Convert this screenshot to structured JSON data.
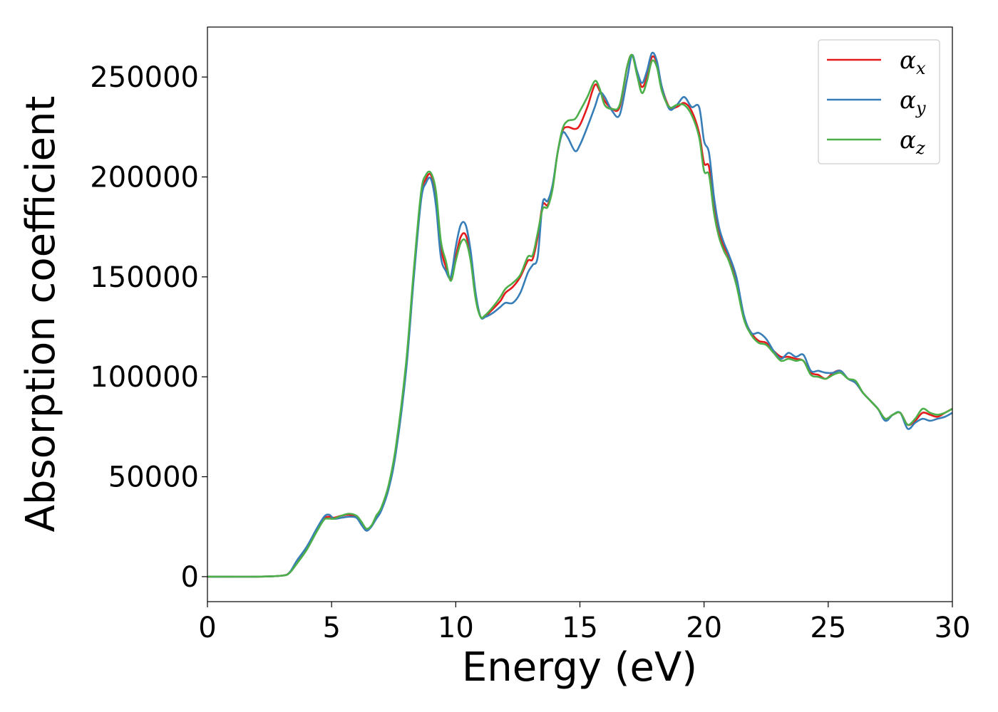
{
  "chart_data": {
    "type": "line",
    "title": "",
    "xlabel": "Energy (eV)",
    "ylabel": "Absorption coefficient",
    "xlim": [
      0,
      30
    ],
    "ylim": [
      -12500,
      275000
    ],
    "xticks": [
      0,
      5,
      10,
      15,
      20,
      25,
      30
    ],
    "yticks": [
      0,
      50000,
      100000,
      150000,
      200000,
      250000
    ],
    "grid": false,
    "legend_position": "top-right",
    "series": [
      {
        "name": "α",
        "subscript": "x",
        "color": "#e41a1c",
        "x": [
          0,
          2,
          3,
          3.3,
          3.6,
          4.0,
          4.4,
          4.7,
          4.9,
          5.1,
          5.4,
          5.7,
          6.0,
          6.2,
          6.4,
          6.6,
          6.8,
          7.0,
          7.3,
          7.6,
          8.0,
          8.3,
          8.6,
          8.8,
          9.0,
          9.2,
          9.4,
          9.6,
          9.8,
          10.0,
          10.2,
          10.4,
          10.6,
          10.8,
          11.0,
          11.2,
          11.5,
          11.8,
          12.0,
          12.3,
          12.6,
          12.9,
          13.1,
          13.3,
          13.5,
          13.7,
          13.9,
          14.1,
          14.3,
          14.5,
          14.8,
          15.0,
          15.3,
          15.6,
          15.8,
          16.0,
          16.3,
          16.6,
          16.9,
          17.1,
          17.3,
          17.5,
          17.7,
          17.9,
          18.1,
          18.3,
          18.6,
          18.9,
          19.2,
          19.5,
          19.8,
          20.0,
          20.2,
          20.4,
          20.6,
          20.8,
          21.0,
          21.3,
          21.6,
          21.9,
          22.2,
          22.5,
          22.8,
          23.1,
          23.4,
          23.7,
          24.0,
          24.3,
          24.6,
          24.9,
          25.2,
          25.5,
          25.8,
          26.1,
          26.4,
          26.7,
          27.0,
          27.3,
          27.6,
          27.9,
          28.2,
          28.5,
          28.8,
          29.1,
          29.4,
          29.7,
          30.0
        ],
        "y": [
          0,
          0,
          500,
          2000,
          7000,
          14000,
          23000,
          29000,
          30000,
          29500,
          30500,
          31000,
          30000,
          27000,
          23500,
          25000,
          30000,
          34000,
          45000,
          65000,
          105000,
          150000,
          190000,
          199000,
          201000,
          190000,
          165000,
          155000,
          149000,
          160000,
          170000,
          171000,
          160000,
          140000,
          130000,
          130500,
          134000,
          138000,
          142000,
          145000,
          150000,
          158000,
          159000,
          170000,
          186000,
          186000,
          195000,
          212000,
          223000,
          225000,
          224000,
          226000,
          235000,
          246000,
          243000,
          238000,
          234000,
          235000,
          255000,
          261000,
          252000,
          245000,
          250000,
          260000,
          257000,
          245000,
          235000,
          235000,
          237000,
          233000,
          222000,
          207000,
          205000,
          185000,
          172000,
          165000,
          160000,
          148000,
          130000,
          122000,
          118000,
          117000,
          113000,
          110000,
          110000,
          109000,
          108000,
          102000,
          101000,
          99000,
          102000,
          103000,
          99000,
          97000,
          92000,
          88000,
          84000,
          79000,
          81000,
          82000,
          76000,
          78000,
          82000,
          81000,
          80000,
          82000,
          84000
        ]
      },
      {
        "name": "α",
        "subscript": "y",
        "color": "#377eb8",
        "x": [
          0,
          2,
          3,
          3.3,
          3.6,
          4.0,
          4.4,
          4.7,
          4.9,
          5.1,
          5.4,
          5.7,
          6.0,
          6.2,
          6.4,
          6.6,
          6.8,
          7.0,
          7.3,
          7.6,
          8.0,
          8.3,
          8.6,
          8.8,
          9.0,
          9.2,
          9.4,
          9.6,
          9.8,
          10.0,
          10.2,
          10.4,
          10.6,
          10.8,
          11.0,
          11.2,
          11.5,
          11.8,
          12.0,
          12.3,
          12.6,
          12.9,
          13.1,
          13.3,
          13.5,
          13.7,
          13.9,
          14.1,
          14.3,
          14.5,
          14.8,
          15.0,
          15.3,
          15.6,
          15.8,
          16.0,
          16.3,
          16.6,
          16.9,
          17.1,
          17.3,
          17.5,
          17.7,
          17.9,
          18.1,
          18.3,
          18.6,
          18.9,
          19.2,
          19.5,
          19.8,
          20.0,
          20.2,
          20.4,
          20.6,
          20.8,
          21.0,
          21.3,
          21.6,
          21.9,
          22.2,
          22.5,
          22.8,
          23.1,
          23.4,
          23.7,
          24.0,
          24.3,
          24.6,
          24.9,
          25.2,
          25.5,
          25.8,
          26.1,
          26.4,
          26.7,
          27.0,
          27.3,
          27.6,
          27.9,
          28.2,
          28.5,
          28.8,
          29.1,
          29.4,
          29.7,
          30.0
        ],
        "y": [
          0,
          0,
          500,
          2000,
          8000,
          15000,
          24000,
          30000,
          31000,
          29000,
          29500,
          30000,
          29500,
          26000,
          23000,
          25000,
          29000,
          33000,
          44000,
          63000,
          103000,
          148000,
          188000,
          197000,
          199000,
          186000,
          160000,
          153000,
          150000,
          165000,
          176000,
          176000,
          163000,
          142000,
          130000,
          130000,
          132000,
          135000,
          137000,
          137000,
          142000,
          152000,
          156000,
          160000,
          187000,
          188000,
          196000,
          212000,
          222000,
          220000,
          213000,
          216000,
          225000,
          235000,
          242000,
          240000,
          233000,
          231000,
          249000,
          261000,
          253000,
          247000,
          253000,
          262000,
          258000,
          245000,
          234000,
          236000,
          240000,
          235000,
          235000,
          218000,
          212000,
          190000,
          175000,
          167000,
          161000,
          150000,
          131000,
          122000,
          122000,
          119000,
          113000,
          109000,
          112000,
          110000,
          111000,
          103000,
          103000,
          102000,
          102000,
          103000,
          99000,
          97000,
          92000,
          88000,
          84000,
          78000,
          81000,
          82000,
          74000,
          77000,
          79000,
          78000,
          79000,
          80000,
          82000
        ]
      },
      {
        "name": "α",
        "subscript": "z",
        "color": "#4daf4a",
        "x": [
          0,
          2,
          3,
          3.3,
          3.6,
          4.0,
          4.4,
          4.7,
          4.9,
          5.1,
          5.4,
          5.7,
          6.0,
          6.2,
          6.4,
          6.6,
          6.8,
          7.0,
          7.3,
          7.6,
          8.0,
          8.3,
          8.6,
          8.8,
          9.0,
          9.2,
          9.4,
          9.6,
          9.8,
          10.0,
          10.2,
          10.4,
          10.6,
          10.8,
          11.0,
          11.2,
          11.5,
          11.8,
          12.0,
          12.3,
          12.6,
          12.9,
          13.1,
          13.3,
          13.5,
          13.7,
          13.9,
          14.1,
          14.3,
          14.5,
          14.8,
          15.0,
          15.3,
          15.6,
          15.8,
          16.0,
          16.3,
          16.6,
          16.9,
          17.1,
          17.3,
          17.5,
          17.7,
          17.9,
          18.1,
          18.3,
          18.6,
          18.9,
          19.2,
          19.5,
          19.8,
          20.0,
          20.2,
          20.4,
          20.6,
          20.8,
          21.0,
          21.3,
          21.6,
          21.9,
          22.2,
          22.5,
          22.8,
          23.1,
          23.4,
          23.7,
          24.0,
          24.3,
          24.6,
          24.9,
          25.2,
          25.5,
          25.8,
          26.1,
          26.4,
          26.7,
          27.0,
          27.3,
          27.6,
          27.9,
          28.2,
          28.5,
          28.8,
          29.1,
          29.4,
          29.7,
          30.0
        ],
        "y": [
          0,
          0,
          500,
          1800,
          6500,
          13500,
          22500,
          28500,
          29000,
          29000,
          30500,
          31500,
          30500,
          27500,
          24000,
          25500,
          30500,
          34500,
          46000,
          66000,
          107000,
          152000,
          192000,
          201000,
          202000,
          193000,
          168000,
          158000,
          148000,
          158000,
          167000,
          168000,
          158000,
          139000,
          130000,
          131000,
          135000,
          140000,
          144000,
          147000,
          151000,
          160000,
          161000,
          172000,
          184000,
          185000,
          194000,
          212000,
          224000,
          228000,
          229000,
          233000,
          240000,
          248000,
          244000,
          236000,
          234000,
          236000,
          255000,
          261000,
          251000,
          242000,
          248000,
          258000,
          255000,
          243000,
          235000,
          236000,
          236000,
          231000,
          220000,
          203000,
          201000,
          182000,
          170000,
          163000,
          158000,
          146000,
          129000,
          121000,
          117000,
          116000,
          112000,
          108000,
          109000,
          108000,
          108000,
          101000,
          100000,
          99000,
          101000,
          102000,
          99000,
          98000,
          92000,
          88000,
          84000,
          79000,
          81000,
          82000,
          76000,
          79000,
          84000,
          82000,
          81000,
          82000,
          84000
        ]
      }
    ]
  }
}
